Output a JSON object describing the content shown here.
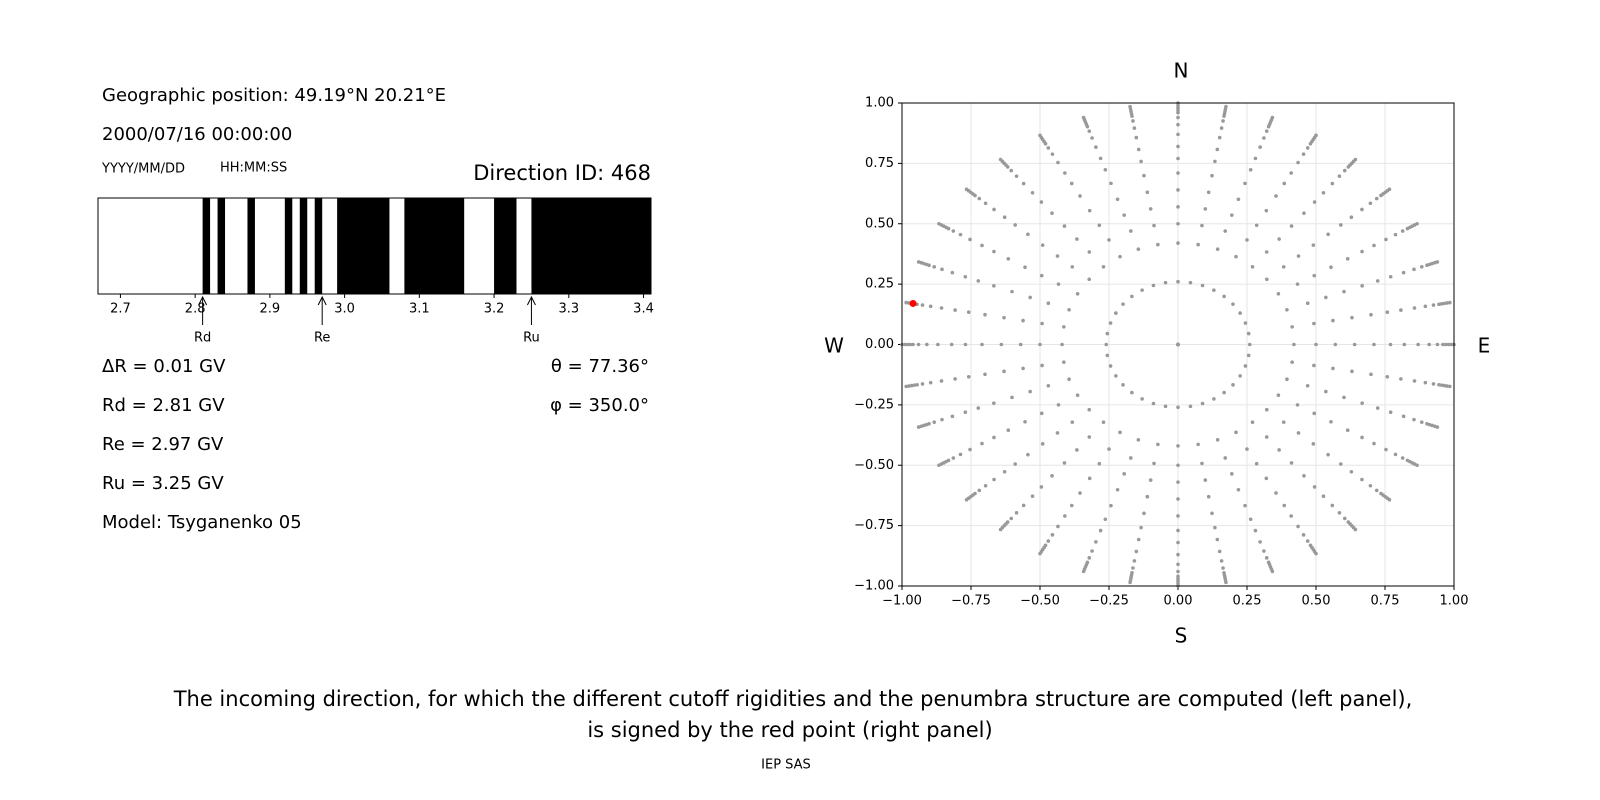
{
  "info": {
    "position": "Geographic position: 49.19°N 20.21°E",
    "datetime": "2000/07/16 00:00:00",
    "date_format": "YYYY/MM/DD",
    "time_format": "HH:MM:SS",
    "delta_r": "ΔR = 0.01 GV",
    "rd": "Rd = 2.81 GV",
    "re": "Re = 2.97 GV",
    "ru": "Ru = 3.25 GV",
    "model": "Model: Tsyganenko 05",
    "theta": "θ = 77.36°",
    "phi": "φ = 350.0°"
  },
  "chart_data": [
    {
      "type": "penumbra",
      "title": "Direction ID: 468",
      "xlim": [
        2.67,
        3.41
      ],
      "xticks": [
        2.7,
        2.8,
        2.9,
        {
          "value": 3.0,
          "label": "3.0"
        },
        3.1,
        3.2,
        3.3,
        3.4
      ],
      "color": "#000000",
      "forbidden": [
        [
          2.81,
          2.82
        ],
        [
          2.83,
          2.84
        ],
        [
          2.87,
          2.88
        ],
        [
          2.92,
          2.93
        ],
        [
          2.94,
          2.95
        ],
        [
          2.96,
          2.97
        ],
        [
          2.99,
          3.06
        ],
        [
          3.08,
          3.16
        ],
        [
          3.2,
          3.23
        ],
        [
          3.25,
          3.41
        ]
      ],
      "markers": [
        {
          "name": "Rd",
          "value": 2.81
        },
        {
          "name": "Re",
          "value": 2.97
        },
        {
          "name": "Ru",
          "value": 3.25
        }
      ]
    },
    {
      "type": "scatter",
      "directions": {
        "top": "N",
        "bottom": "S",
        "left": "W",
        "right": "E"
      },
      "xlim": [
        -1,
        1
      ],
      "ylim": [
        -1,
        1
      ],
      "xticks": [
        {
          "value": -1,
          "label": "−1.00"
        },
        {
          "value": -0.75,
          "label": "−0.75"
        },
        {
          "value": -0.5,
          "label": "−0.50"
        },
        {
          "value": -0.25,
          "label": "−0.25"
        },
        {
          "value": 0,
          "label": "0.00"
        },
        {
          "value": 0.25,
          "label": "0.25"
        },
        {
          "value": 0.5,
          "label": "0.50"
        },
        {
          "value": 0.75,
          "label": "0.75"
        },
        {
          "value": 1,
          "label": "1.00"
        }
      ],
      "yticks": [
        {
          "value": -1,
          "label": "−1.00"
        },
        {
          "value": -0.75,
          "label": "−0.75"
        },
        {
          "value": -0.5,
          "label": "−0.50"
        },
        {
          "value": -0.25,
          "label": "−0.25"
        },
        {
          "value": 0,
          "label": "0.00"
        },
        {
          "value": 0.25,
          "label": "0.25"
        },
        {
          "value": 0.5,
          "label": "0.50"
        },
        {
          "value": 0.75,
          "label": "0.75"
        },
        {
          "value": 1,
          "label": "1.00"
        }
      ],
      "grid": true,
      "color": "#999999",
      "azimuths": [
        0,
        10,
        20,
        30,
        40,
        50,
        60,
        70,
        80,
        90,
        100,
        110,
        120,
        130,
        140,
        150,
        160,
        170,
        180,
        190,
        200,
        210,
        220,
        230,
        240,
        250,
        260,
        270,
        280,
        290,
        300,
        310,
        320,
        330,
        340,
        350
      ],
      "radii": [
        0,
        0.26,
        0.42,
        0.5,
        0.57,
        0.64,
        0.71,
        0.77,
        0.82,
        0.87,
        0.91,
        0.94,
        0.96,
        0.97,
        0.98,
        0.99,
        1.0
      ],
      "highlight": {
        "x": -0.96,
        "y": 0.17,
        "color": "#ff0000"
      }
    }
  ],
  "caption": [
    "The incoming direction, for which the different cutoff rigidities and the penumbra structure are computed (left panel),",
    "is signed by the red point (right panel)"
  ],
  "footer": "IEP SAS"
}
